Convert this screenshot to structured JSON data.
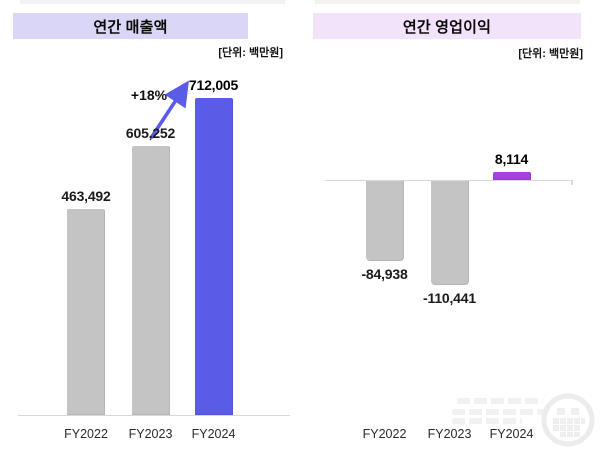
{
  "page": {
    "background": "#FFFFFF"
  },
  "chart_data": [
    {
      "type": "bar",
      "title": "연간 매출액",
      "unit_label": "[단위: 백만원]",
      "unit": "백만원",
      "categories": [
        "FY2022",
        "FY2023",
        "FY2024"
      ],
      "values": [
        463492,
        605252,
        712005
      ],
      "data_labels": [
        "463,492",
        "605,252",
        "712,005"
      ],
      "annotation": {
        "text": "+18%",
        "arrow": true
      },
      "highlight_index": 2,
      "colors": {
        "default_bar": "#C4C4C4",
        "highlight_bar": "#5A5BE6"
      },
      "ylim": [
        0,
        712005
      ],
      "legend": "none",
      "grid": false
    },
    {
      "type": "bar",
      "title": "연간 영업이익",
      "unit_label": "[단위: 백만원]",
      "unit": "백만원",
      "categories": [
        "FY2022",
        "FY2023",
        "FY2024"
      ],
      "values": [
        -84938,
        -110441,
        8114
      ],
      "data_labels": [
        "-84,938",
        "-110,441",
        "8,114"
      ],
      "highlight_index": 2,
      "colors": {
        "default_bar": "#C4C4C4",
        "highlight_bar": "#A142E0"
      },
      "ylim": [
        -110441,
        8114
      ],
      "legend": "none",
      "grid": false
    }
  ],
  "colors": {
    "left_title_bg": "#DAD6F7",
    "right_title_bg": "#F3E3FA",
    "revenue_highlight": "#5A5BE6",
    "profit_highlight": "#A142E0",
    "bar_gray": "#C4C4C4",
    "axis_line": "#D8D8D8",
    "arrow": "#5A5BE6",
    "text": "#111111"
  }
}
